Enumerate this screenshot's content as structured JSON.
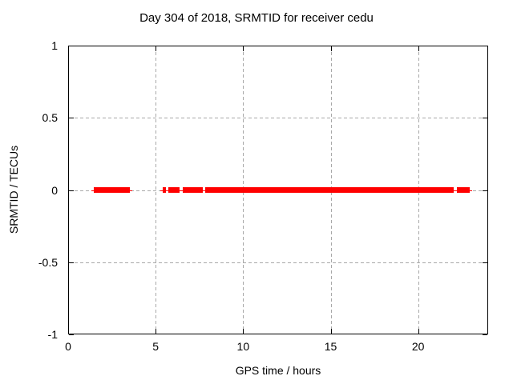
{
  "chart_data": {
    "type": "scatter",
    "title": "Day 304 of 2018, SRMTID for receiver cedu",
    "xlabel": "GPS time / hours",
    "ylabel": "SRMTID / TECUs",
    "xlim": [
      0,
      24
    ],
    "ylim": [
      -1,
      1
    ],
    "xticks": {
      "values": [
        0,
        5,
        10,
        15,
        20
      ],
      "labels": [
        "0",
        "5",
        "10",
        "15",
        "20"
      ]
    },
    "yticks": {
      "values": [
        1,
        0.5,
        0,
        -0.5,
        -1
      ],
      "labels": [
        "1",
        "0.5",
        "0",
        "-0.5",
        "-1"
      ]
    },
    "grid": {
      "show": true,
      "style": "dashed",
      "color": "#a8a8a8",
      "x_gridlines": [
        5,
        10,
        15,
        20
      ],
      "y_gridlines": [
        0.5,
        0,
        -0.5
      ]
    },
    "axes_color": "#000000",
    "background_color": "#ffffff",
    "legend": "none",
    "series": [
      {
        "name": "srmtid",
        "marker": "plus",
        "color": "#ff0000",
        "y": 0,
        "segments_x_hours": [
          [
            1.47,
            3.53
          ],
          [
            5.4,
            5.59
          ],
          [
            5.73,
            6.37
          ],
          [
            6.55,
            7.7
          ],
          [
            7.83,
            22.03
          ],
          [
            22.21,
            22.95
          ]
        ]
      }
    ]
  }
}
